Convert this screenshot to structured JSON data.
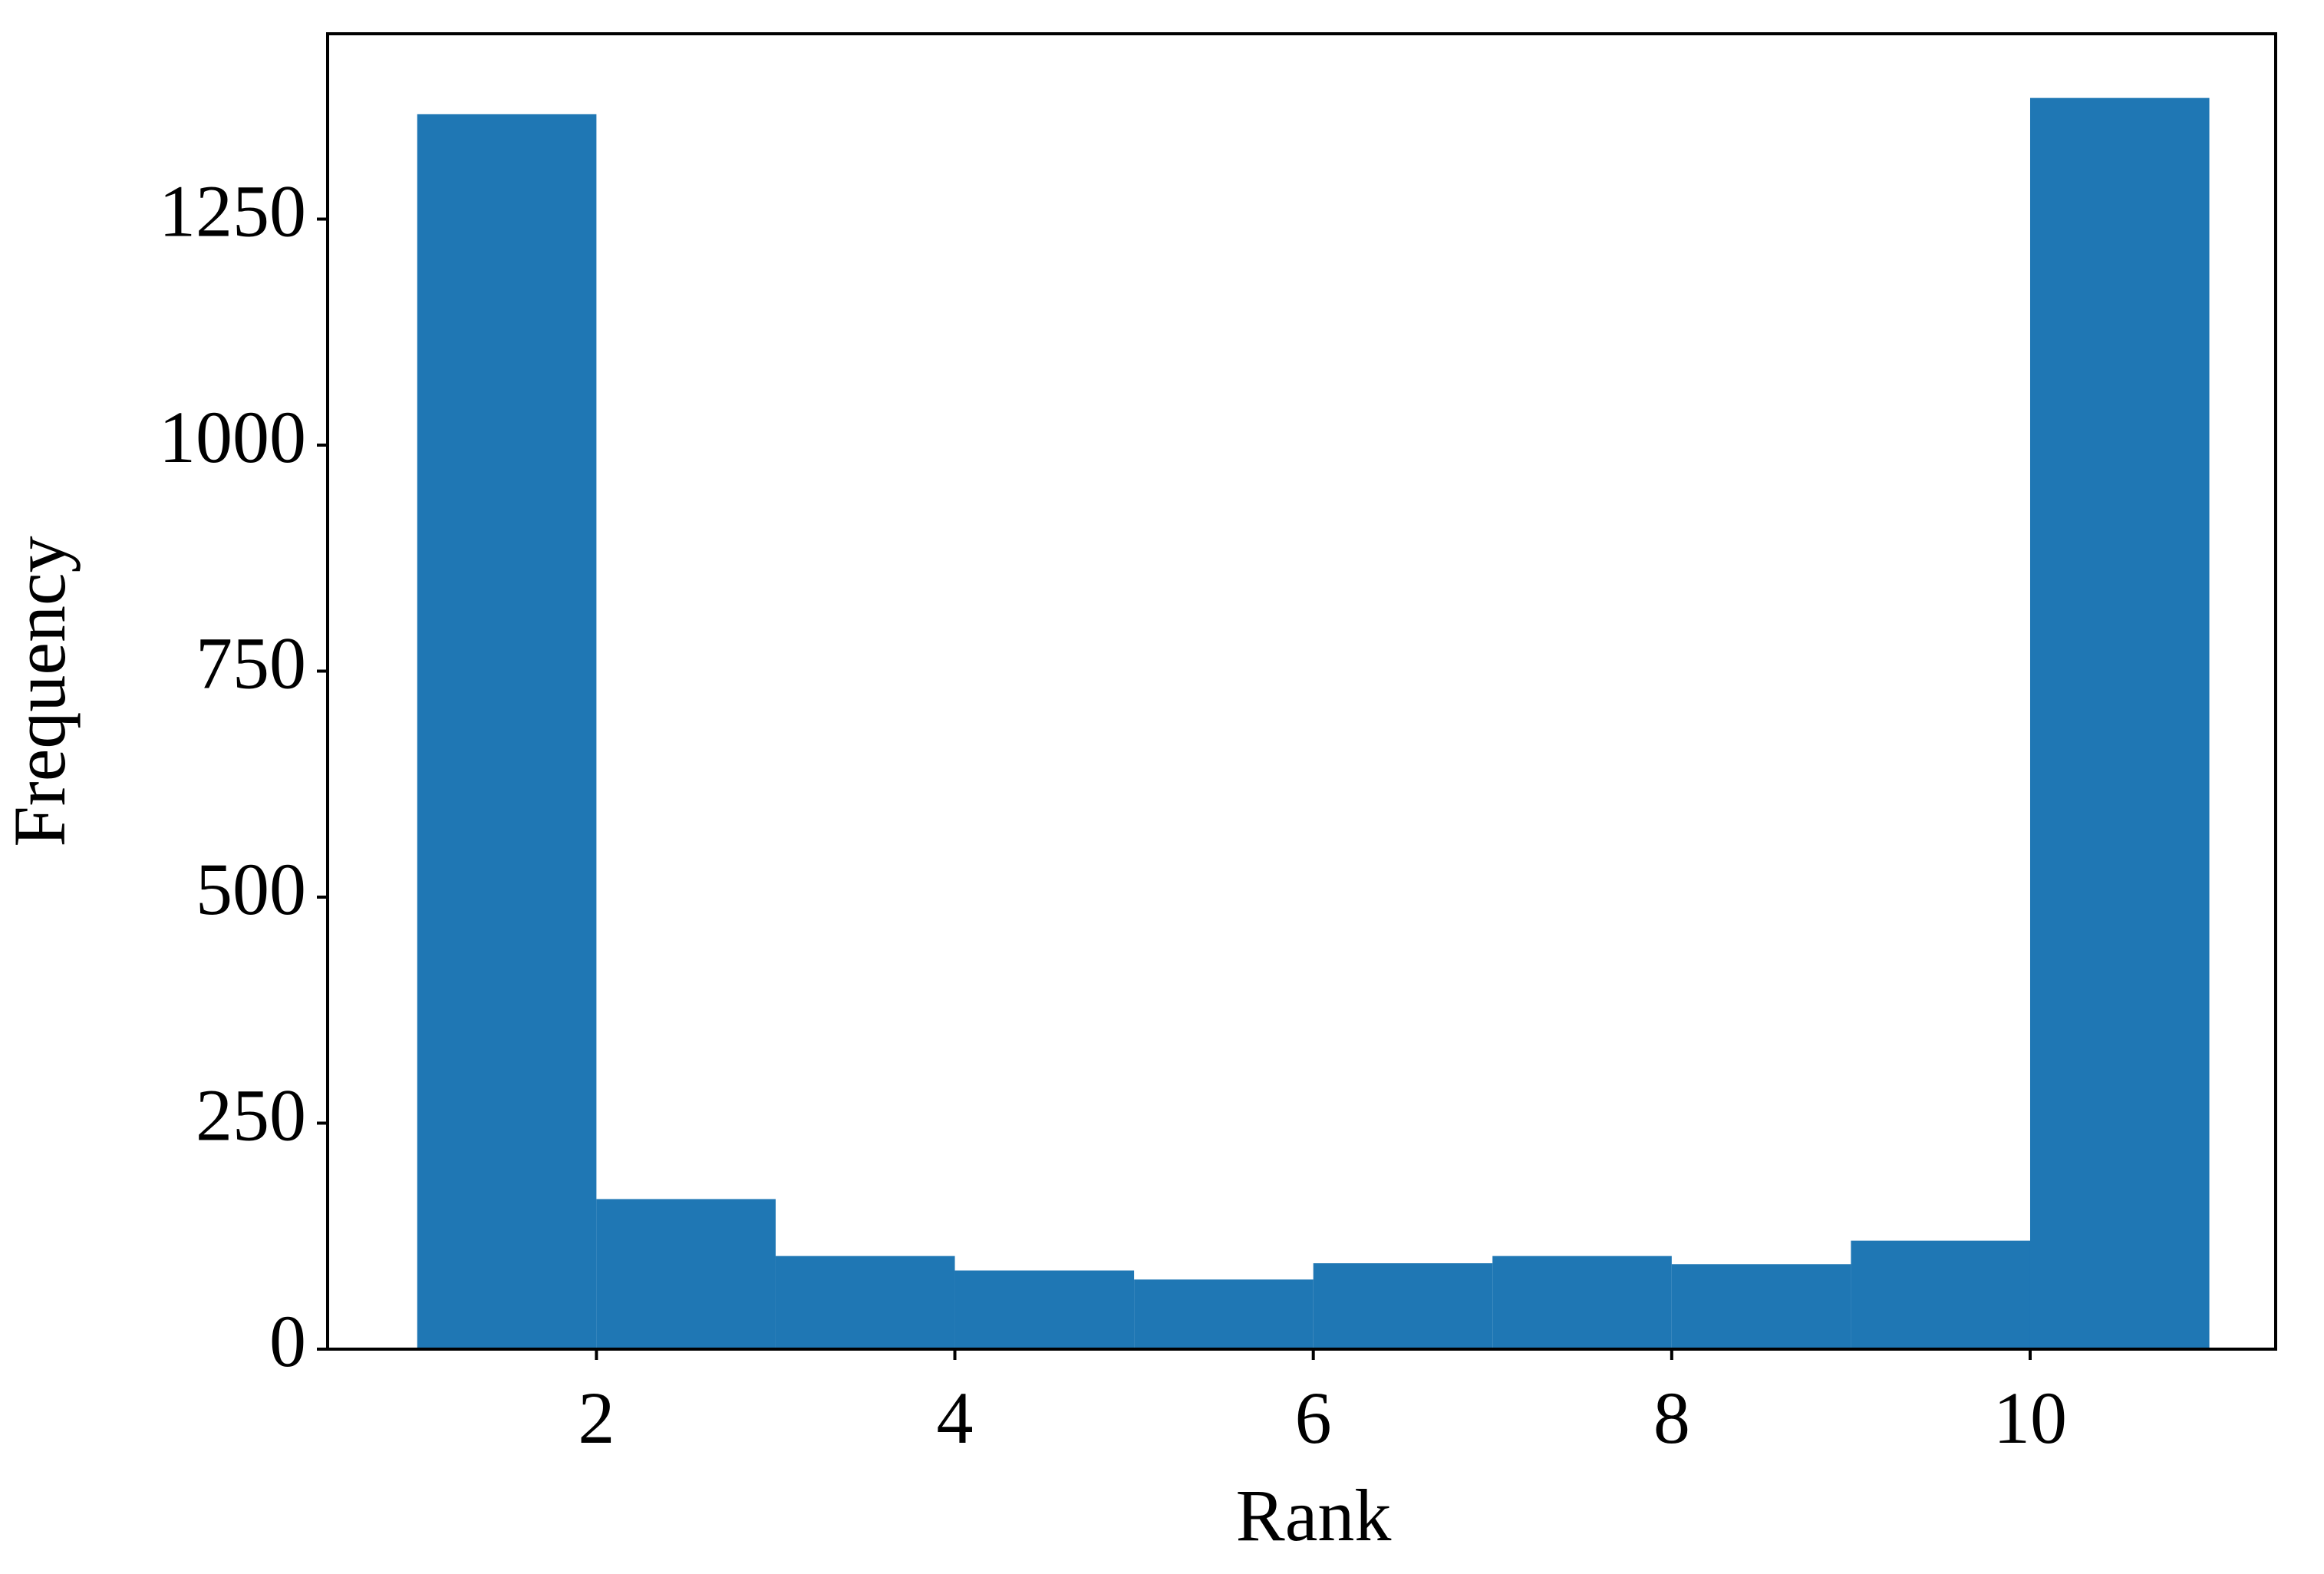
{
  "chart_data": {
    "type": "histogram",
    "xlabel": "Rank",
    "ylabel": "Frequency",
    "bins": [
      1,
      2,
      3,
      4,
      5,
      6,
      7,
      8,
      9,
      10,
      11
    ],
    "values": [
      1366,
      166,
      103,
      87,
      77,
      95,
      103,
      94,
      120,
      1384
    ],
    "color": "#1f77b4",
    "xlim": [
      0.5,
      11.37
    ],
    "xticks": [
      2,
      4,
      6,
      8,
      10
    ],
    "ylim": [
      0,
      1455
    ],
    "yticks": [
      0,
      250,
      500,
      750,
      1000,
      1250
    ],
    "grid": false
  }
}
